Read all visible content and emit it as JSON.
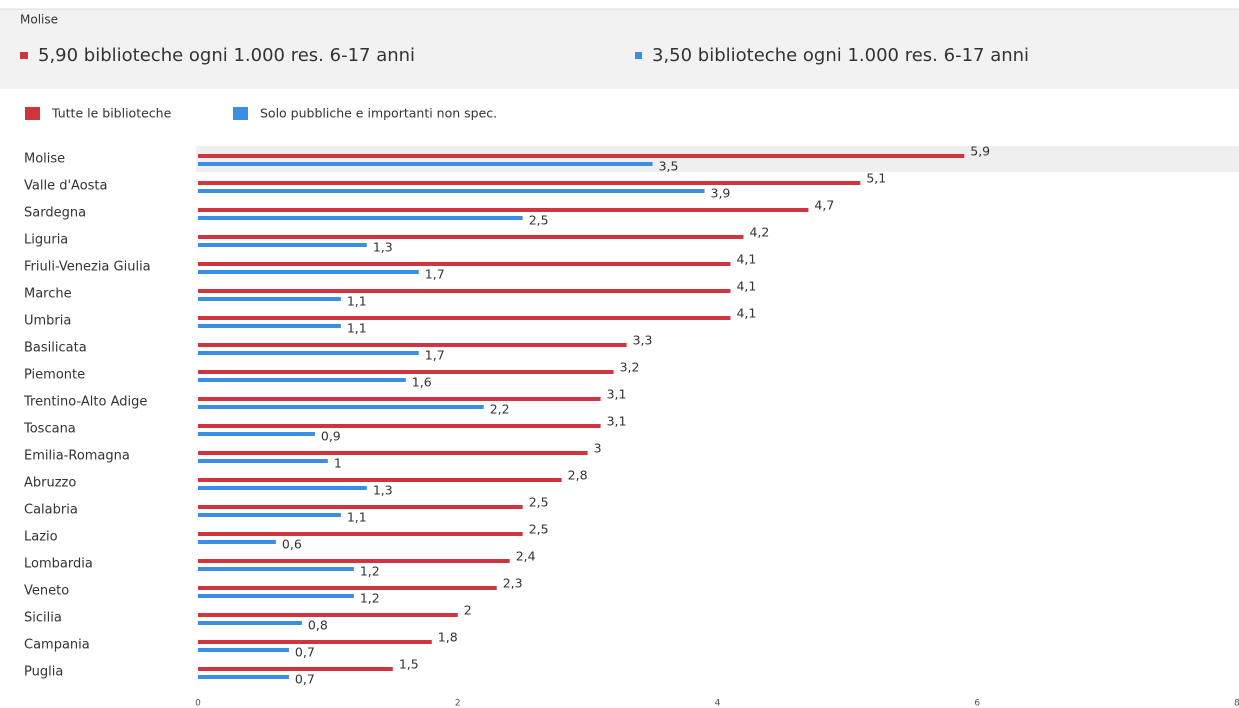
{
  "chart_data": {
    "type": "hbar",
    "header": {
      "title": "Molise",
      "items": [
        "5,90 biblioteche ogni 1.000 res. 6-17 anni",
        "3,50 biblioteche ogni 1.000 res. 6-17 anni"
      ]
    },
    "categories": [
      "Molise",
      "Valle d'Aosta",
      "Sardegna",
      "Liguria",
      "Friuli-Venezia Giulia",
      "Marche",
      "Umbria",
      "Basilicata",
      "Piemonte",
      "Trentino-Alto Adige",
      "Toscana",
      "Emilia-Romagna",
      "Abruzzo",
      "Calabria",
      "Lazio",
      "Lombardia",
      "Veneto",
      "Sicilia",
      "Campania",
      "Puglia"
    ],
    "series": [
      {
        "name": "Tutte le biblioteche",
        "color": "#d0343c",
        "values": [
          5.9,
          5.1,
          4.7,
          4.2,
          4.1,
          4.1,
          4.1,
          3.3,
          3.2,
          3.1,
          3.1,
          3,
          2.8,
          2.5,
          2.5,
          2.4,
          2.3,
          2,
          1.8,
          1.5
        ],
        "value_labels": [
          "5,9",
          "5,1",
          "4,7",
          "4,2",
          "4,1",
          "4,1",
          "4,1",
          "3,3",
          "3,2",
          "3,1",
          "3,1",
          "3",
          "2,8",
          "2,5",
          "2,5",
          "2,4",
          "2,3",
          "2",
          "1,8",
          "1,5"
        ]
      },
      {
        "name": "Solo pubbliche e importanti non spec.",
        "color": "#3a8ee6",
        "values": [
          3.5,
          3.9,
          2.5,
          1.3,
          1.7,
          1.1,
          1.1,
          1.7,
          1.6,
          2.2,
          0.9,
          1,
          1.3,
          1.1,
          0.6,
          1.2,
          1.2,
          0.8,
          0.7,
          0.7
        ],
        "value_labels": [
          "3,5",
          "3,9",
          "2,5",
          "1,3",
          "1,7",
          "1,1",
          "1,1",
          "1,7",
          "1,6",
          "2,2",
          "0,9",
          "1",
          "1,3",
          "1,1",
          "0,6",
          "1,2",
          "1,2",
          "0,8",
          "0,7",
          "0,7"
        ]
      }
    ],
    "xlim": [
      0,
      8
    ],
    "xticks": [
      0,
      2,
      4,
      6,
      8
    ]
  }
}
